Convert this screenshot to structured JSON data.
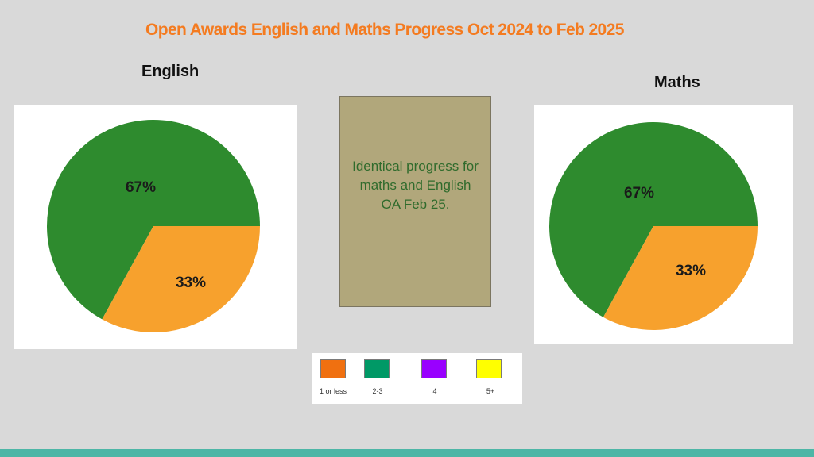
{
  "page": {
    "title": "Open Awards English and Maths Progress Oct 2024 to Feb 2025",
    "note": "Identical progress for maths and English OA Feb 25.",
    "accent_color": "#f47b20",
    "bar_color": "#4db6a6"
  },
  "chart_data": [
    {
      "type": "pie",
      "title": "English",
      "slices": [
        {
          "label": "67%",
          "value": 67,
          "color": "#2e8b2e"
        },
        {
          "label": "33%",
          "value": 33,
          "color": "#f7a12d"
        }
      ]
    },
    {
      "type": "pie",
      "title": "Maths",
      "slices": [
        {
          "label": "67%",
          "value": 67,
          "color": "#2e8b2e"
        },
        {
          "label": "33%",
          "value": 33,
          "color": "#f7a12d"
        }
      ]
    }
  ],
  "legend": {
    "items": [
      {
        "label": "1 or less",
        "color": "#f07010"
      },
      {
        "label": "2-3",
        "color": "#009966"
      },
      {
        "label": "4",
        "color": "#9900ff"
      },
      {
        "label": "5+",
        "color": "#ffff00"
      }
    ]
  }
}
